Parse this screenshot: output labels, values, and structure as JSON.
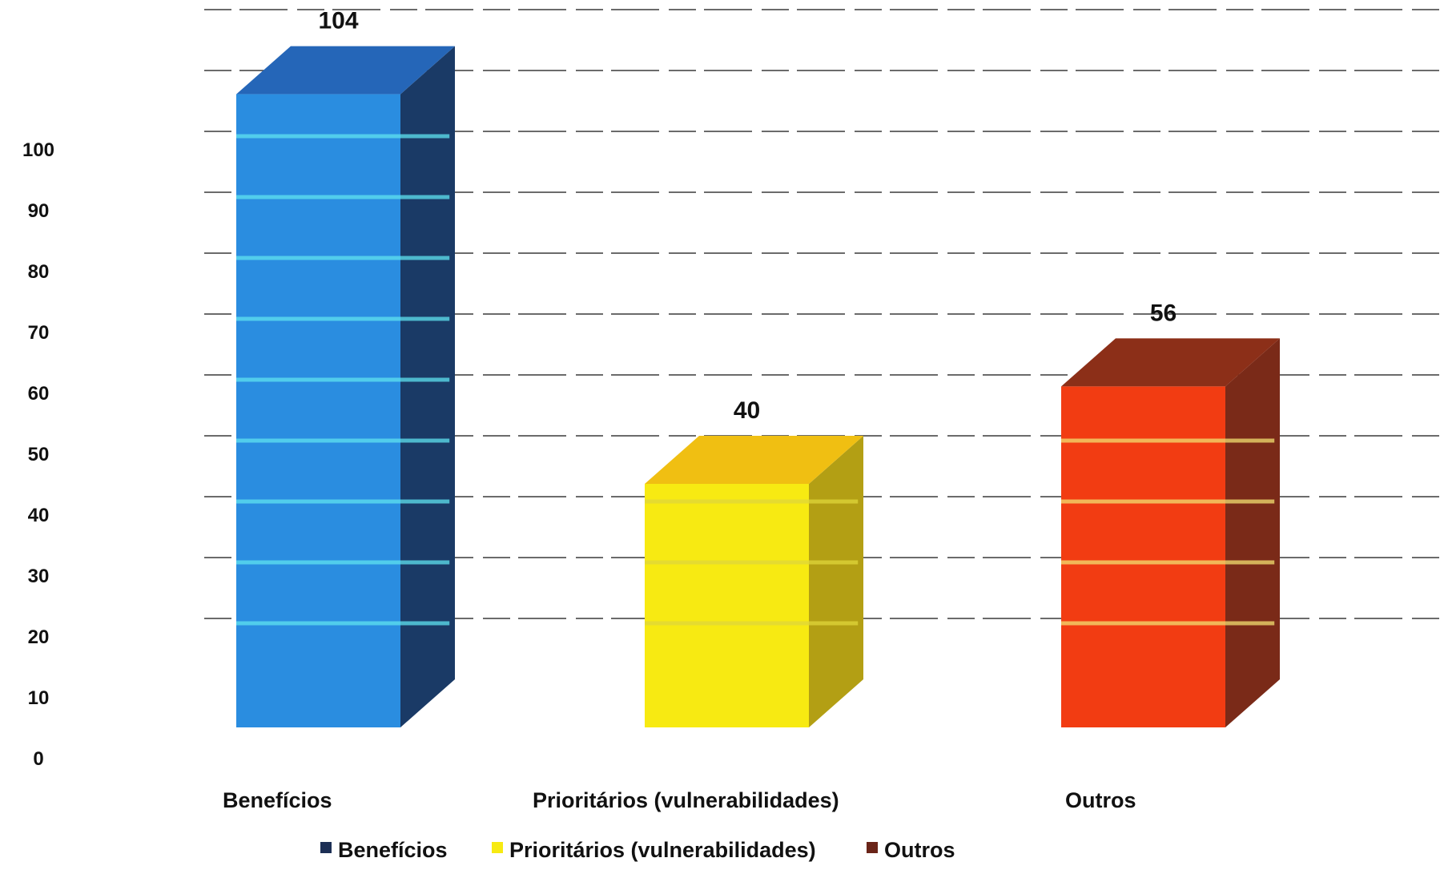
{
  "chart_data": {
    "type": "bar",
    "title": "",
    "xlabel": "",
    "ylabel": "",
    "categories": [
      "Benefícios",
      "Prioritários (vulnerabilidades)",
      "Outros"
    ],
    "values": [
      104,
      40,
      56
    ],
    "data_labels": [
      "104",
      "40",
      "56"
    ],
    "y_ticks": [
      "0",
      "10",
      "20",
      "30",
      "40",
      "50",
      "60",
      "70",
      "80",
      "90",
      "100"
    ],
    "ylim": [
      0,
      110
    ],
    "grid": true,
    "three_d": true,
    "legend": {
      "placement": "bottom",
      "entries": [
        "Benefícios",
        "Prioritários (vulnerabilidades)",
        "Outros"
      ]
    },
    "colors": {
      "series": [
        {
          "front": "#2a8de0",
          "side": "#1a3a66",
          "top": "#2566b8",
          "stripe": "#5fe3f0",
          "swatch": "#1c2f55"
        },
        {
          "front": "#f7ea12",
          "side": "#b39f14",
          "top": "#f0bf12",
          "stripe": "#e0d63a",
          "swatch": "#f7ea12"
        },
        {
          "front": "#f23c12",
          "side": "#7a2a18",
          "top": "#8c2f18",
          "stripe": "#f2e070",
          "swatch": "#6a2418"
        }
      ],
      "grid": "#3a3a3a"
    }
  }
}
